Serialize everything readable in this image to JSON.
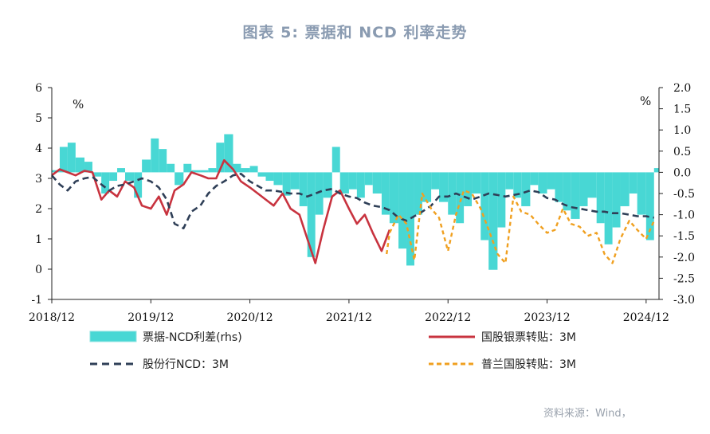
{
  "title": "图表 5:   票据和 NCD 利率走势",
  "source": "资料来源：Wind，",
  "chart_data": {
    "type": "line",
    "left_unit": "%",
    "right_unit": "%",
    "ylim": [
      -1,
      6
    ],
    "y2lim": [
      -3.0,
      2.0
    ],
    "yticks": [
      "6",
      "5",
      "4",
      "3",
      "2",
      "1",
      "0",
      "-1"
    ],
    "y2ticks": [
      "2.0",
      "1.5",
      "1.0",
      "0.5",
      "0.0",
      "-0.5",
      "-1.0",
      "-1.5",
      "-2.0",
      "-2.5",
      "-3.0"
    ],
    "xticks": [
      "2018/12",
      "2019/12",
      "2020/12",
      "2021/12",
      "2022/12",
      "2023/12",
      "2024/12"
    ],
    "colors": {
      "spread": "#48d7d4",
      "guogu": "#c8333f",
      "ncd": "#2f3f57",
      "pulan": "#f0a020"
    },
    "series": [
      {
        "name": "票据-NCD利差(rhs)",
        "axis": "right",
        "kind": "area",
        "x": [
          2018.92,
          2019.0,
          2019.08,
          2019.16,
          2019.25,
          2019.33,
          2019.42,
          2019.5,
          2019.58,
          2019.66,
          2019.75,
          2019.83,
          2019.92,
          2020.0,
          2020.08,
          2020.16,
          2020.25,
          2020.33,
          2020.42,
          2020.5,
          2020.58,
          2020.66,
          2020.75,
          2020.83,
          2020.92,
          2021.0,
          2021.08,
          2021.16,
          2021.25,
          2021.33,
          2021.42,
          2021.5,
          2021.58,
          2021.66,
          2021.75,
          2021.83,
          2021.92,
          2022.0,
          2022.08,
          2022.16,
          2022.25,
          2022.33,
          2022.42,
          2022.5,
          2022.58,
          2022.66,
          2022.75,
          2022.83,
          2022.92,
          2023.0,
          2023.08,
          2023.16,
          2023.25,
          2023.33,
          2023.42,
          2023.5,
          2023.58,
          2023.66,
          2023.75,
          2023.83,
          2023.92,
          2024.0,
          2024.08,
          2024.16,
          2024.25,
          2024.33,
          2024.42,
          2024.5,
          2024.58,
          2024.66,
          2024.75,
          2024.83,
          2024.92,
          2025.0
        ],
        "values": [
          0.05,
          0.6,
          0.7,
          0.35,
          0.25,
          -0.1,
          -0.5,
          -0.2,
          0.1,
          -0.2,
          -0.6,
          0.3,
          0.8,
          0.55,
          0.2,
          -0.3,
          0.2,
          0.05,
          0.05,
          0.1,
          0.7,
          0.9,
          0.2,
          0.1,
          0.15,
          -0.1,
          -0.2,
          -0.3,
          -0.55,
          -0.4,
          -0.8,
          -2.0,
          -1.0,
          -0.6,
          0.6,
          -0.5,
          -0.4,
          -0.6,
          -0.3,
          -0.5,
          -1.0,
          -1.2,
          -1.8,
          -2.2,
          -1.0,
          -0.7,
          -0.4,
          -0.7,
          -1.0,
          -1.2,
          -0.8,
          -0.5,
          -1.6,
          -2.3,
          -1.3,
          -0.4,
          -0.6,
          -0.8,
          -0.3,
          -0.5,
          -0.4,
          -0.7,
          -0.9,
          -1.1,
          -0.8,
          -0.6,
          -1.2,
          -1.7,
          -1.3,
          -0.8,
          -0.5,
          -1.0,
          -1.6,
          0.1
        ]
      },
      {
        "name": "国股银票转贴：3M",
        "axis": "left",
        "kind": "line",
        "x": [
          2018.92,
          2019.0,
          2019.08,
          2019.16,
          2019.25,
          2019.33,
          2019.42,
          2019.5,
          2019.58,
          2019.66,
          2019.75,
          2019.83,
          2019.92,
          2020.0,
          2020.08,
          2020.16,
          2020.25,
          2020.33,
          2020.42,
          2020.5,
          2020.58,
          2020.66,
          2020.75,
          2020.83,
          2020.92,
          2021.0,
          2021.08,
          2021.16,
          2021.25,
          2021.33,
          2021.42,
          2021.5,
          2021.58,
          2021.66,
          2021.75,
          2021.83,
          2021.92,
          2022.0,
          2022.08,
          2022.16,
          2022.25,
          2022.33
        ],
        "values": [
          3.1,
          3.3,
          3.2,
          3.1,
          3.25,
          3.2,
          2.3,
          2.6,
          2.4,
          2.9,
          2.7,
          2.1,
          2.0,
          2.4,
          1.8,
          2.6,
          2.8,
          3.2,
          3.1,
          3.0,
          3.0,
          3.6,
          3.3,
          2.9,
          2.7,
          2.5,
          2.3,
          2.1,
          2.5,
          2.0,
          1.8,
          1.0,
          0.2,
          1.3,
          2.4,
          2.6,
          2.0,
          1.5,
          1.8,
          1.2,
          0.6,
          1.3
        ]
      },
      {
        "name": "股份行NCD：3M",
        "axis": "left",
        "kind": "dashed",
        "x": [
          2018.92,
          2019.0,
          2019.08,
          2019.16,
          2019.25,
          2019.33,
          2019.42,
          2019.5,
          2019.58,
          2019.66,
          2019.75,
          2019.83,
          2019.92,
          2020.0,
          2020.08,
          2020.16,
          2020.25,
          2020.33,
          2020.42,
          2020.5,
          2020.58,
          2020.66,
          2020.75,
          2020.83,
          2020.92,
          2021.0,
          2021.08,
          2021.16,
          2021.25,
          2021.33,
          2021.42,
          2021.5,
          2021.58,
          2021.66,
          2021.75,
          2021.83,
          2021.92,
          2022.0,
          2022.08,
          2022.16,
          2022.25,
          2022.33,
          2022.42,
          2022.5,
          2022.58,
          2022.66,
          2022.75,
          2022.83,
          2022.92,
          2023.0,
          2023.08,
          2023.16,
          2023.25,
          2023.33,
          2023.42,
          2023.5,
          2023.58,
          2023.66,
          2023.75,
          2023.83,
          2023.92,
          2024.0,
          2024.08,
          2024.16,
          2024.25,
          2024.33,
          2024.42,
          2024.5,
          2024.58,
          2024.66,
          2024.75,
          2024.83,
          2024.92,
          2025.0
        ],
        "values": [
          3.1,
          2.8,
          2.6,
          2.9,
          3.0,
          3.05,
          2.8,
          2.6,
          2.75,
          2.8,
          2.9,
          3.0,
          2.9,
          2.7,
          2.3,
          1.5,
          1.35,
          1.9,
          2.1,
          2.5,
          2.75,
          2.9,
          3.1,
          3.15,
          2.9,
          2.75,
          2.6,
          2.6,
          2.55,
          2.5,
          2.5,
          2.4,
          2.5,
          2.6,
          2.65,
          2.5,
          2.4,
          2.35,
          2.2,
          2.1,
          2.05,
          1.95,
          1.7,
          1.6,
          1.75,
          1.9,
          2.1,
          2.4,
          2.4,
          2.5,
          2.4,
          2.3,
          2.4,
          2.5,
          2.45,
          2.4,
          2.45,
          2.5,
          2.6,
          2.55,
          2.35,
          2.3,
          2.15,
          2.05,
          2.0,
          1.95,
          1.9,
          1.9,
          1.85,
          1.85,
          1.8,
          1.75,
          1.75,
          1.7
        ]
      },
      {
        "name": "普兰国股转贴：3M",
        "axis": "left",
        "kind": "dashed",
        "x": [
          2022.3,
          2022.33,
          2022.42,
          2022.5,
          2022.58,
          2022.66,
          2022.75,
          2022.83,
          2022.92,
          2023.0,
          2023.08,
          2023.16,
          2023.25,
          2023.33,
          2023.42,
          2023.5,
          2023.58,
          2023.66,
          2023.75,
          2023.83,
          2023.92,
          2024.0,
          2024.08,
          2024.16,
          2024.25,
          2024.33,
          2024.42,
          2024.5,
          2024.58,
          2024.66,
          2024.75,
          2024.83,
          2024.92,
          2025.0
        ],
        "values": [
          0.5,
          1.2,
          1.8,
          1.5,
          0.3,
          2.5,
          2.0,
          1.7,
          0.6,
          1.8,
          2.6,
          2.5,
          2.0,
          1.3,
          0.5,
          0.2,
          2.4,
          1.9,
          1.8,
          1.5,
          1.2,
          1.3,
          2.0,
          1.5,
          1.4,
          1.1,
          1.2,
          0.5,
          0.2,
          1.0,
          1.6,
          1.3,
          1.0,
          1.6
        ]
      }
    ],
    "legend": [
      {
        "label": "票据-NCD利差(rhs)",
        "style": "area"
      },
      {
        "label": "国股银票转贴：3M",
        "style": "solid"
      },
      {
        "label": "股份行NCD：3M",
        "style": "dashed-dark"
      },
      {
        "label": "普兰国股转贴：3M",
        "style": "dashed-orange"
      }
    ]
  }
}
